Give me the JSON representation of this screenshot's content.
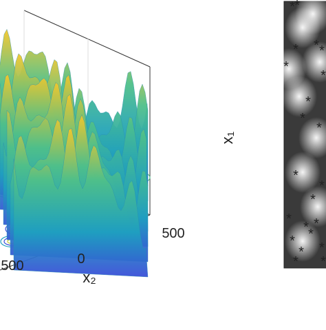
{
  "left_panel": {
    "tick_labels": [
      "500",
      "0",
      "500"
    ],
    "axis_title": "x₂"
  },
  "right_panel": {
    "axis_title": "x₁"
  }
}
